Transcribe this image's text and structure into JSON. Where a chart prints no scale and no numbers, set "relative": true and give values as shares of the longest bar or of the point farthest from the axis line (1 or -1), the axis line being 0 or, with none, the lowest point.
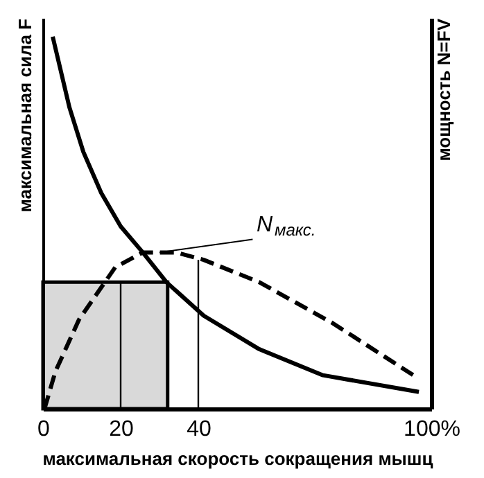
{
  "chart_data": {
    "type": "line",
    "relative": true,
    "xlabel": "максимальная скорость сокращения мышц",
    "ylabel": "максимальная сила F",
    "y2label": "мощность N=FV",
    "xlim": [
      0,
      100
    ],
    "xticks": [
      0,
      20,
      40,
      {
        "value": 100,
        "label": "100%"
      }
    ],
    "tick_labels": "x",
    "grid": false,
    "series": [
      {
        "type": "area",
        "color": "#000000",
        "x": [
          0,
          32.1
        ],
        "values": [
          0.34,
          0.34
        ]
      },
      {
        "color": "#000000",
        "line_style": "solid",
        "x": [
          20,
          20
        ],
        "values": [
          0,
          0.34
        ]
      },
      {
        "color": "#000000",
        "line_style": "solid",
        "x": [
          40,
          40
        ],
        "values": [
          0,
          0.4
        ]
      },
      {
        "color": "#000000",
        "line_style": "solid",
        "x": [
          2.5,
          6.8,
          10.4,
          15.0,
          20.0,
          25.7,
          31.8,
          41.4,
          55.7,
          72.1,
          96.8
        ],
        "values": [
          1.0,
          0.81,
          0.69,
          0.58,
          0.49,
          0.42,
          0.34,
          0.25,
          0.16,
          0.09,
          0.045
        ]
      },
      {
        "color": "#000000",
        "line_style": "dashed",
        "x": [
          0.4,
          3.2,
          9.3,
          18.6,
          25.7,
          34.3,
          41.4,
          55.7,
          74.6,
          95.4
        ],
        "values": [
          0,
          0.1,
          0.24,
          0.38,
          0.42,
          0.42,
          0.4,
          0.34,
          0.23,
          0.09
        ]
      }
    ],
    "annotations": [
      {
        "text": "N$_{макс.}$",
        "x": 30,
        "y": 0.42
      }
    ]
  }
}
